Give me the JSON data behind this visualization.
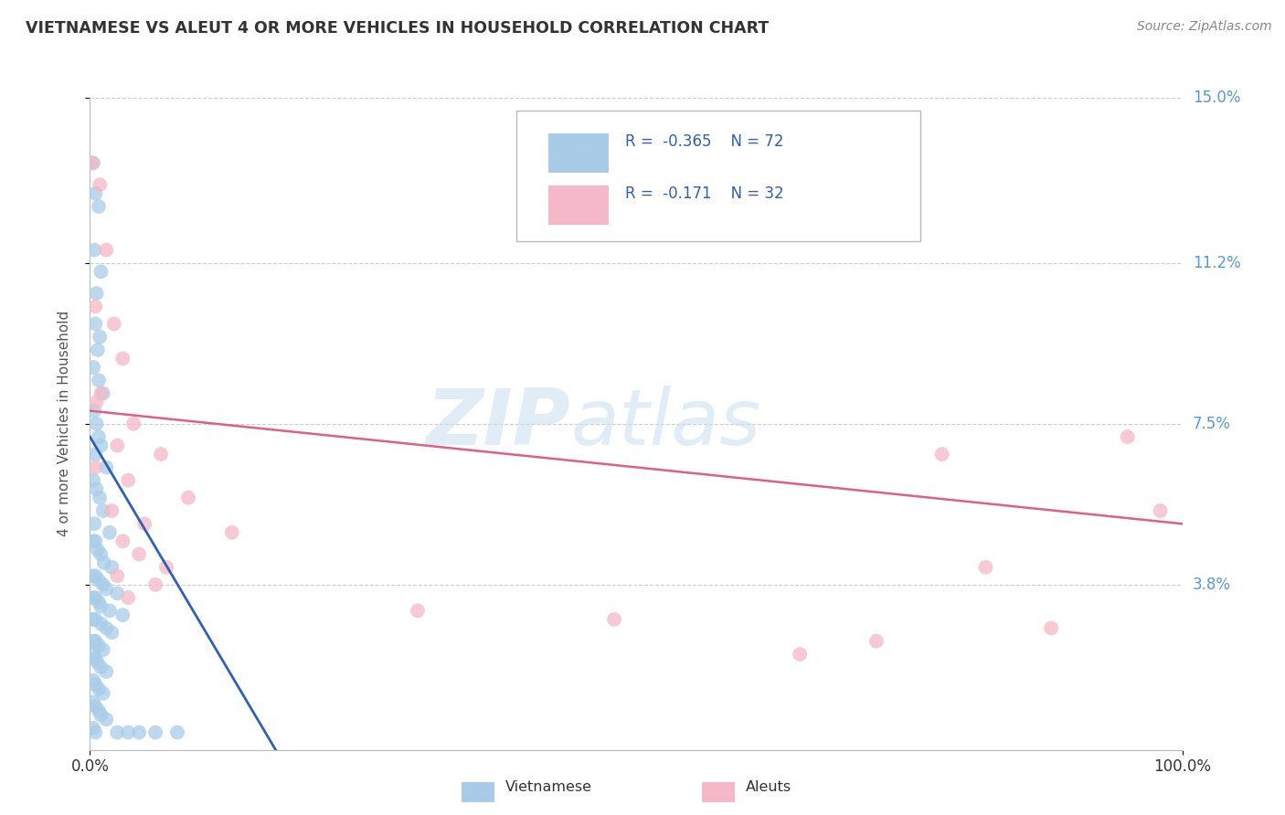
{
  "title": "VIETNAMESE VS ALEUT 4 OR MORE VEHICLES IN HOUSEHOLD CORRELATION CHART",
  "source": "Source: ZipAtlas.com",
  "ylabel": "4 or more Vehicles in Household",
  "xlim": [
    0,
    100
  ],
  "ylim": [
    0,
    15
  ],
  "ytick_labels": [
    "3.8%",
    "7.5%",
    "11.2%",
    "15.0%"
  ],
  "ytick_values": [
    3.8,
    7.5,
    11.2,
    15.0
  ],
  "watermark_text": "ZIP",
  "watermark_text2": "atlas",
  "vietnamese_color": "#a8cce8",
  "aleut_color": "#f4b8c8",
  "vietnamese_line_color": "#3060b0",
  "aleut_line_color": "#e06080",
  "title_color": "#3060b0",
  "right_label_color": "#5599dd",
  "grid_color": "#cccccc",
  "legend_r1": "R =  -0.365",
  "legend_n1": "N = 72",
  "legend_r2": "R =  -0.171",
  "legend_n2": "N = 32",
  "bottom_legend_label1": "Vietnamese",
  "bottom_legend_label2": "Aleuts",
  "vietnamese_points": [
    [
      0.3,
      13.5
    ],
    [
      0.5,
      12.8
    ],
    [
      0.8,
      12.5
    ],
    [
      0.4,
      11.5
    ],
    [
      1.0,
      11.0
    ],
    [
      0.6,
      10.5
    ],
    [
      0.5,
      9.8
    ],
    [
      0.9,
      9.5
    ],
    [
      0.7,
      9.2
    ],
    [
      0.3,
      8.8
    ],
    [
      0.8,
      8.5
    ],
    [
      1.2,
      8.2
    ],
    [
      0.4,
      7.8
    ],
    [
      0.6,
      7.5
    ],
    [
      0.8,
      7.2
    ],
    [
      1.0,
      7.0
    ],
    [
      0.5,
      6.8
    ],
    [
      1.5,
      6.5
    ],
    [
      0.3,
      6.2
    ],
    [
      0.6,
      6.0
    ],
    [
      0.9,
      5.8
    ],
    [
      1.2,
      5.5
    ],
    [
      0.4,
      5.2
    ],
    [
      1.8,
      5.0
    ],
    [
      0.3,
      4.8
    ],
    [
      0.5,
      4.8
    ],
    [
      0.7,
      4.6
    ],
    [
      1.0,
      4.5
    ],
    [
      1.3,
      4.3
    ],
    [
      2.0,
      4.2
    ],
    [
      0.3,
      4.0
    ],
    [
      0.5,
      4.0
    ],
    [
      0.8,
      3.9
    ],
    [
      1.2,
      3.8
    ],
    [
      1.5,
      3.7
    ],
    [
      2.5,
      3.6
    ],
    [
      0.3,
      3.5
    ],
    [
      0.5,
      3.5
    ],
    [
      0.8,
      3.4
    ],
    [
      1.0,
      3.3
    ],
    [
      1.8,
      3.2
    ],
    [
      3.0,
      3.1
    ],
    [
      0.3,
      3.0
    ],
    [
      0.5,
      3.0
    ],
    [
      1.0,
      2.9
    ],
    [
      1.5,
      2.8
    ],
    [
      2.0,
      2.7
    ],
    [
      0.3,
      2.5
    ],
    [
      0.5,
      2.5
    ],
    [
      0.8,
      2.4
    ],
    [
      1.2,
      2.3
    ],
    [
      0.3,
      2.2
    ],
    [
      0.5,
      2.1
    ],
    [
      0.7,
      2.0
    ],
    [
      1.0,
      1.9
    ],
    [
      1.5,
      1.8
    ],
    [
      0.3,
      1.6
    ],
    [
      0.5,
      1.5
    ],
    [
      0.8,
      1.4
    ],
    [
      1.2,
      1.3
    ],
    [
      0.3,
      1.1
    ],
    [
      0.5,
      1.0
    ],
    [
      0.8,
      0.9
    ],
    [
      1.0,
      0.8
    ],
    [
      1.5,
      0.7
    ],
    [
      0.3,
      0.5
    ],
    [
      0.5,
      0.4
    ],
    [
      2.5,
      0.4
    ],
    [
      3.5,
      0.4
    ],
    [
      4.5,
      0.4
    ],
    [
      6.0,
      0.4
    ],
    [
      8.0,
      0.4
    ]
  ],
  "aleut_points": [
    [
      0.2,
      13.5
    ],
    [
      0.9,
      13.0
    ],
    [
      1.5,
      11.5
    ],
    [
      0.5,
      10.2
    ],
    [
      2.2,
      9.8
    ],
    [
      3.0,
      9.0
    ],
    [
      1.0,
      8.2
    ],
    [
      0.6,
      8.0
    ],
    [
      4.0,
      7.5
    ],
    [
      2.5,
      7.0
    ],
    [
      6.5,
      6.8
    ],
    [
      0.5,
      6.5
    ],
    [
      3.5,
      6.2
    ],
    [
      9.0,
      5.8
    ],
    [
      2.0,
      5.5
    ],
    [
      5.0,
      5.2
    ],
    [
      13.0,
      5.0
    ],
    [
      3.0,
      4.8
    ],
    [
      4.5,
      4.5
    ],
    [
      7.0,
      4.2
    ],
    [
      2.5,
      4.0
    ],
    [
      6.0,
      3.8
    ],
    [
      3.5,
      3.5
    ],
    [
      30.0,
      3.2
    ],
    [
      48.0,
      3.0
    ],
    [
      78.0,
      6.8
    ],
    [
      82.0,
      4.2
    ],
    [
      88.0,
      2.8
    ],
    [
      95.0,
      7.2
    ],
    [
      98.0,
      5.5
    ],
    [
      65.0,
      2.2
    ],
    [
      72.0,
      2.5
    ]
  ],
  "vietnamese_trend_x": [
    0.0,
    17.0
  ],
  "vietnamese_trend_y": [
    7.2,
    0.0
  ],
  "aleut_trend_x": [
    0.0,
    100.0
  ],
  "aleut_trend_y": [
    7.8,
    5.2
  ]
}
